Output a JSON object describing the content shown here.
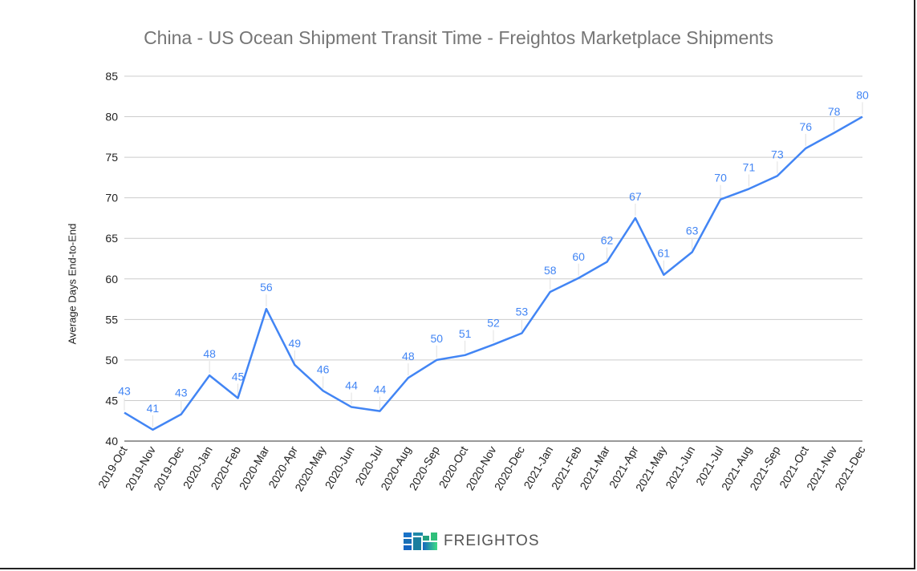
{
  "chart_data": {
    "type": "line",
    "title": "China - US Ocean Shipment Transit Time - Freightos Marketplace Shipments",
    "xlabel": "",
    "ylabel": "Average Days End-to-End",
    "ylim": [
      40,
      85
    ],
    "yticks": [
      40,
      45,
      50,
      55,
      60,
      65,
      70,
      75,
      80,
      85
    ],
    "grid": true,
    "line_color": "#4285f4",
    "categories": [
      "2019-Oct",
      "2019-Nov",
      "2019-Dec",
      "2020-Jan",
      "2020-Feb",
      "2020-Mar",
      "2020-Apr",
      "2020-May",
      "2020-Jun",
      "2020-Jul",
      "2020-Aug",
      "2020-Sep",
      "2020-Oct",
      "2020-Nov",
      "2020-Dec",
      "2021-Jan",
      "2021-Feb",
      "2021-Mar",
      "2021-Apr",
      "2021-May",
      "2021-Jun",
      "2021-Jul",
      "2021-Aug",
      "2021-Sep",
      "2021-Oct",
      "2021-Nov",
      "2021-Dec"
    ],
    "values": [
      43.5,
      41.4,
      43.3,
      48.1,
      45.3,
      56.3,
      49.4,
      46.2,
      44.2,
      43.7,
      47.8,
      50.0,
      50.6,
      51.9,
      53.3,
      58.4,
      60.1,
      62.1,
      67.5,
      60.5,
      63.3,
      69.8,
      71.1,
      72.7,
      76.1,
      78.0,
      80.0
    ],
    "data_labels": [
      "43",
      "41",
      "43",
      "48",
      "45",
      "56",
      "49",
      "46",
      "44",
      "44",
      "48",
      "50",
      "51",
      "52",
      "53",
      "58",
      "60",
      "62",
      "67",
      "61",
      "63",
      "70",
      "71",
      "73",
      "76",
      "78",
      "80"
    ]
  },
  "logo": {
    "text": "FREIGHTOS"
  }
}
